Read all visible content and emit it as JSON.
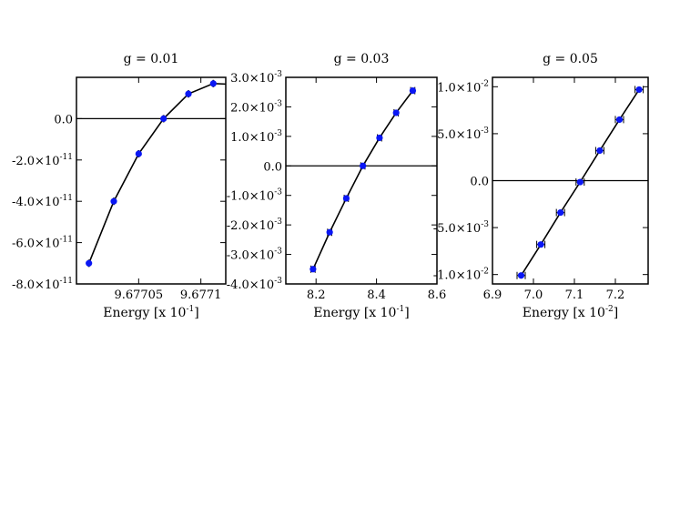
{
  "chart_data": [
    {
      "type": "line",
      "title": "g = 0.01",
      "xlabel": "Energy [x 10",
      "xlabel_exp": "-1",
      "xlim": [
        9.677,
        9.67712
      ],
      "ylim": [
        -8e-11,
        2e-11
      ],
      "x_ticks": [
        {
          "value": 9.67705,
          "label": "9.67705"
        },
        {
          "value": 9.6771,
          "label": "9.6771"
        }
      ],
      "y_ticks": [
        {
          "value": 0.0,
          "mant": "0.0",
          "exp": ""
        },
        {
          "value": -2e-11,
          "mant": "-2.0×10",
          "exp": "-11"
        },
        {
          "value": -4e-11,
          "mant": "-4.0×10",
          "exp": "-11"
        },
        {
          "value": -6e-11,
          "mant": "-6.0×10",
          "exp": "-11"
        },
        {
          "value": -8e-11,
          "mant": "-8.0×10",
          "exp": "-11"
        }
      ],
      "zero_line": true,
      "series": [
        {
          "x": [
            9.67701,
            9.67703,
            9.67705,
            9.67707,
            9.67709,
            9.67711,
            9.67713
          ],
          "y": [
            -7e-11,
            -4e-11,
            -1.7e-11,
            0.0,
            1.2e-11,
            1.7e-11,
            1.65e-11
          ],
          "xerr": [
            3e-07,
            3e-07,
            3e-07,
            3e-07,
            3e-07,
            3e-07,
            3e-07
          ]
        }
      ],
      "colors": {
        "marker": "#0a17f5",
        "line": "#000000"
      }
    },
    {
      "type": "line",
      "title": "g = 0.03",
      "xlabel": "Energy [x 10",
      "xlabel_exp": "-1",
      "xlim": [
        8.1,
        8.6
      ],
      "ylim": [
        -0.004,
        0.003
      ],
      "x_ticks": [
        {
          "value": 8.2,
          "label": "8.2"
        },
        {
          "value": 8.4,
          "label": "8.4"
        },
        {
          "value": 8.6,
          "label": "8.6"
        }
      ],
      "y_ticks": [
        {
          "value": 0.003,
          "mant": "3.0×10",
          "exp": "-3"
        },
        {
          "value": 0.002,
          "mant": "2.0×10",
          "exp": "-3"
        },
        {
          "value": 0.001,
          "mant": "1.0×10",
          "exp": "-3"
        },
        {
          "value": 0.0,
          "mant": "0.0",
          "exp": ""
        },
        {
          "value": -0.001,
          "mant": "-1.0×10",
          "exp": "-3"
        },
        {
          "value": -0.002,
          "mant": "-2.0×10",
          "exp": "-3"
        },
        {
          "value": -0.003,
          "mant": "-3.0×10",
          "exp": "-3"
        },
        {
          "value": -0.004,
          "mant": "-4.0×10",
          "exp": "-3"
        }
      ],
      "zero_line": true,
      "series": [
        {
          "x": [
            8.19,
            8.245,
            8.3,
            8.355,
            8.41,
            8.465,
            8.52
          ],
          "y": [
            -0.0035,
            -0.00225,
            -0.0011,
            0.0,
            0.00095,
            0.0018,
            0.00255
          ],
          "xerr": [
            0.007,
            0.007,
            0.007,
            0.007,
            0.007,
            0.007,
            0.007
          ]
        }
      ],
      "colors": {
        "marker": "#0a17f5",
        "line": "#000000"
      }
    },
    {
      "type": "line",
      "title": "g = 0.05",
      "xlabel": "Energy [x 10",
      "xlabel_exp": "-2",
      "xlim": [
        6.9,
        7.28
      ],
      "ylim": [
        -0.011,
        0.011
      ],
      "x_ticks": [
        {
          "value": 6.9,
          "label": "6.9"
        },
        {
          "value": 7.0,
          "label": "7.0"
        },
        {
          "value": 7.1,
          "label": "7.1"
        },
        {
          "value": 7.2,
          "label": "7.2"
        }
      ],
      "y_ticks": [
        {
          "value": 0.01,
          "mant": "1.0×10",
          "exp": "-2"
        },
        {
          "value": 0.005,
          "mant": "5.0×10",
          "exp": "-3"
        },
        {
          "value": 0.0,
          "mant": "0.0",
          "exp": ""
        },
        {
          "value": -0.005,
          "mant": "-5.0×10",
          "exp": "-3"
        },
        {
          "value": -0.01,
          "mant": "-1.0×10",
          "exp": "-2"
        }
      ],
      "zero_line": true,
      "series": [
        {
          "x": [
            6.97,
            7.018,
            7.066,
            7.114,
            7.162,
            7.21,
            7.258
          ],
          "y": [
            -0.0101,
            -0.0068,
            -0.0034,
            -0.00015,
            0.0032,
            0.0065,
            0.0097
          ],
          "xerr": [
            0.01,
            0.01,
            0.01,
            0.01,
            0.01,
            0.01,
            0.01
          ]
        }
      ],
      "colors": {
        "marker": "#0a17f5",
        "line": "#000000"
      }
    }
  ]
}
